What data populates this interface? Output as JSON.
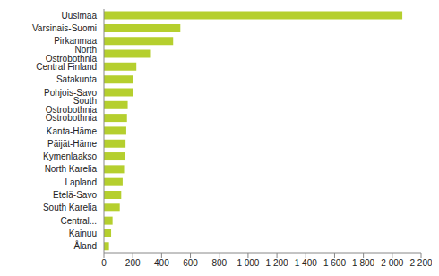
{
  "chart_data": {
    "type": "bar",
    "orientation": "horizontal",
    "categories": [
      "Uusimaa",
      "Varsinais-Suomi",
      "Pirkanmaa",
      "North Ostrobothnia",
      "Central Finland",
      "Satakunta",
      "Pohjois-Savo",
      "South Ostrobothnia",
      "Ostrobothnia",
      "Kanta-Häme",
      "Päijät-Häme",
      "Kymenlaakso",
      "North Karelia",
      "Lapland",
      "Etelä-Savo",
      "South Karelia",
      "Central...",
      "Kainuu",
      "Åland"
    ],
    "values": [
      2070,
      530,
      480,
      320,
      225,
      205,
      200,
      165,
      160,
      155,
      150,
      145,
      140,
      130,
      120,
      110,
      60,
      50,
      35
    ],
    "color": "#b5cf2e",
    "xlim": [
      0,
      2200
    ],
    "xticks": [
      0,
      200,
      400,
      600,
      800,
      {
        "value": 1000,
        "label": "1 000"
      },
      {
        "value": 1200,
        "label": "1 200"
      },
      {
        "value": 1400,
        "label": "1 400"
      },
      {
        "value": 1600,
        "label": "1 600"
      },
      {
        "value": 1800,
        "label": "1 800"
      },
      {
        "value": 2000,
        "label": "2 000"
      },
      {
        "value": 2200,
        "label": "2 200"
      }
    ],
    "grid": false
  }
}
